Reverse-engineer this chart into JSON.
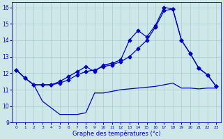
{
  "xlabel": "Graphe des températures (°c)",
  "xlim": [
    -0.5,
    23.5
  ],
  "ylim": [
    9,
    16.3
  ],
  "yticks": [
    9,
    10,
    11,
    12,
    13,
    14,
    15,
    16
  ],
  "xticks": [
    0,
    1,
    2,
    3,
    4,
    5,
    6,
    7,
    8,
    9,
    10,
    11,
    12,
    13,
    14,
    15,
    16,
    17,
    18,
    19,
    20,
    21,
    22,
    23
  ],
  "background_color": "#cce8e8",
  "grid_color": "#aacccc",
  "line_color": "#0000cc",
  "line1_x": [
    0,
    1,
    2,
    3,
    4,
    5,
    6,
    7,
    8,
    9,
    10,
    11,
    12,
    13,
    14,
    15,
    16,
    17,
    18,
    19,
    20,
    21,
    22,
    23
  ],
  "line1_y": [
    12.2,
    11.7,
    11.3,
    10.3,
    9.9,
    9.5,
    9.5,
    9.5,
    9.6,
    10.8,
    10.8,
    10.9,
    11.0,
    11.05,
    11.1,
    11.15,
    11.2,
    11.3,
    11.4,
    11.1,
    11.1,
    11.05,
    11.1,
    11.1
  ],
  "line2_x": [
    0,
    1,
    2,
    3,
    4,
    5,
    6,
    7,
    8,
    9,
    10,
    11,
    12,
    13,
    14,
    15,
    16,
    17,
    18,
    19,
    20,
    21,
    22,
    23
  ],
  "line2_y": [
    12.2,
    11.7,
    11.3,
    11.3,
    11.3,
    11.4,
    11.6,
    11.9,
    12.1,
    12.2,
    12.4,
    12.5,
    12.7,
    13.0,
    13.5,
    14.0,
    14.8,
    15.8,
    15.9,
    14.0,
    13.2,
    12.3,
    11.9,
    11.2
  ],
  "line3_x": [
    0,
    1,
    2,
    3,
    4,
    5,
    6,
    7,
    8,
    9,
    10,
    11,
    12,
    13,
    14,
    15,
    16,
    17,
    18,
    19,
    20,
    21,
    22,
    23
  ],
  "line3_y": [
    12.2,
    11.7,
    11.3,
    11.3,
    11.3,
    11.5,
    11.8,
    12.1,
    12.4,
    12.1,
    12.5,
    12.6,
    12.8,
    14.0,
    14.6,
    14.2,
    14.9,
    16.0,
    15.9,
    14.0,
    13.2,
    12.3,
    11.9,
    11.2
  ]
}
